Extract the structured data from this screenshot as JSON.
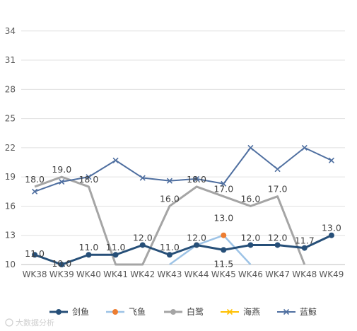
{
  "chart_data": {
    "type": "line",
    "categories": [
      "WK38",
      "WK39",
      "WK40",
      "WK41",
      "WK42",
      "WK43",
      "WK44",
      "WK45",
      "WK46",
      "WK47",
      "WK48",
      "WK49"
    ],
    "ylim": [
      10,
      35
    ],
    "yticks": [
      10,
      13,
      16,
      19,
      22,
      25,
      28,
      31,
      34
    ],
    "grid": true,
    "legend_position": "bottom",
    "series": [
      {
        "name": "剑鱼",
        "color": "#264F78",
        "marker": "circle",
        "width": 3,
        "values": [
          11.0,
          10.0,
          11.0,
          11.0,
          12.0,
          11.0,
          12.0,
          11.5,
          12.0,
          12.0,
          11.7,
          13.0
        ],
        "labels": [
          "11.0",
          "10.0",
          "11.0",
          "11.0",
          "12.0",
          "11.0",
          "12.0",
          "11.5",
          "12.0",
          "12.0",
          "11.7",
          "13.0"
        ]
      },
      {
        "name": "飞鱼",
        "color": "#9DC3E6",
        "marker": "circle",
        "width": 2.5,
        "values": [
          null,
          null,
          null,
          null,
          null,
          9.5,
          12.0,
          13.0,
          9.0,
          null,
          null,
          null
        ],
        "labels": [
          "",
          "",
          "",
          "",
          "",
          "",
          "",
          "13.0",
          "",
          "",
          "",
          ""
        ]
      },
      {
        "name": "白鹭",
        "color": "#A5A5A5",
        "marker": "circle",
        "width": 3,
        "values": [
          18.0,
          19.0,
          18.0,
          8.0,
          8.0,
          16.0,
          18.0,
          17.0,
          16.0,
          17.0,
          8.0,
          null
        ],
        "labels": [
          "18.0",
          "19.0",
          "18.0",
          "",
          "",
          "16.0",
          "18.0",
          "17.0",
          "16.0",
          "17.0",
          "",
          ""
        ]
      },
      {
        "name": "海燕",
        "color": "#FFC000",
        "marker": "x",
        "width": 2,
        "values": [
          null,
          null,
          null,
          null,
          null,
          null,
          null,
          null,
          null,
          null,
          null,
          null
        ],
        "labels": [
          "",
          "",
          "",
          "",
          "",
          "",
          "",
          "",
          "",
          "",
          "",
          ""
        ]
      },
      {
        "name": "蓝鲸",
        "color": "#4F6FA0",
        "marker": "x",
        "width": 2,
        "values": [
          17.5,
          18.5,
          19.0,
          20.7,
          18.9,
          18.6,
          18.8,
          18.3,
          22.0,
          19.8,
          22.0,
          20.7
        ],
        "labels": [
          "",
          "",
          "",
          "",
          "",
          "",
          "",
          "",
          "",
          "",
          "",
          ""
        ]
      }
    ]
  },
  "watermark": {
    "text": "大数据分析"
  }
}
